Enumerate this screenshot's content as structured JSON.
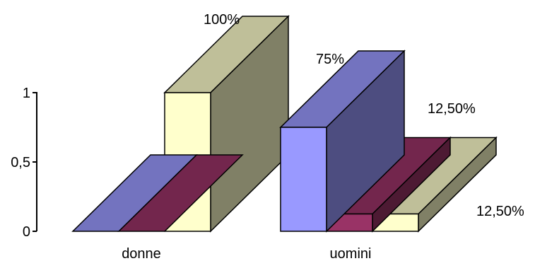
{
  "chart_data": {
    "type": "bar",
    "style": "3d-clustered-columns",
    "categories": [
      "donne",
      "uomini"
    ],
    "series": [
      {
        "values": [
          0,
          0.75
        ],
        "color": "#9999ff"
      },
      {
        "values": [
          0,
          0.125
        ],
        "color": "#993366"
      },
      {
        "values": [
          1,
          0.125
        ],
        "color": "#ffffcc"
      }
    ],
    "data_labels": [
      {
        "category": 0,
        "series": 2,
        "text": "100%"
      },
      {
        "category": 1,
        "series": 0,
        "text": "75%"
      },
      {
        "category": 1,
        "series": 1,
        "text": "12,50%"
      },
      {
        "category": 1,
        "series": 2,
        "text": "12,50%"
      }
    ],
    "y_ticks": [
      {
        "value": 0,
        "label": "0"
      },
      {
        "value": 0.5,
        "label": "0,5"
      },
      {
        "value": 1,
        "label": "1"
      }
    ],
    "ylim": [
      0,
      1
    ],
    "grid": false,
    "legend": "none"
  }
}
